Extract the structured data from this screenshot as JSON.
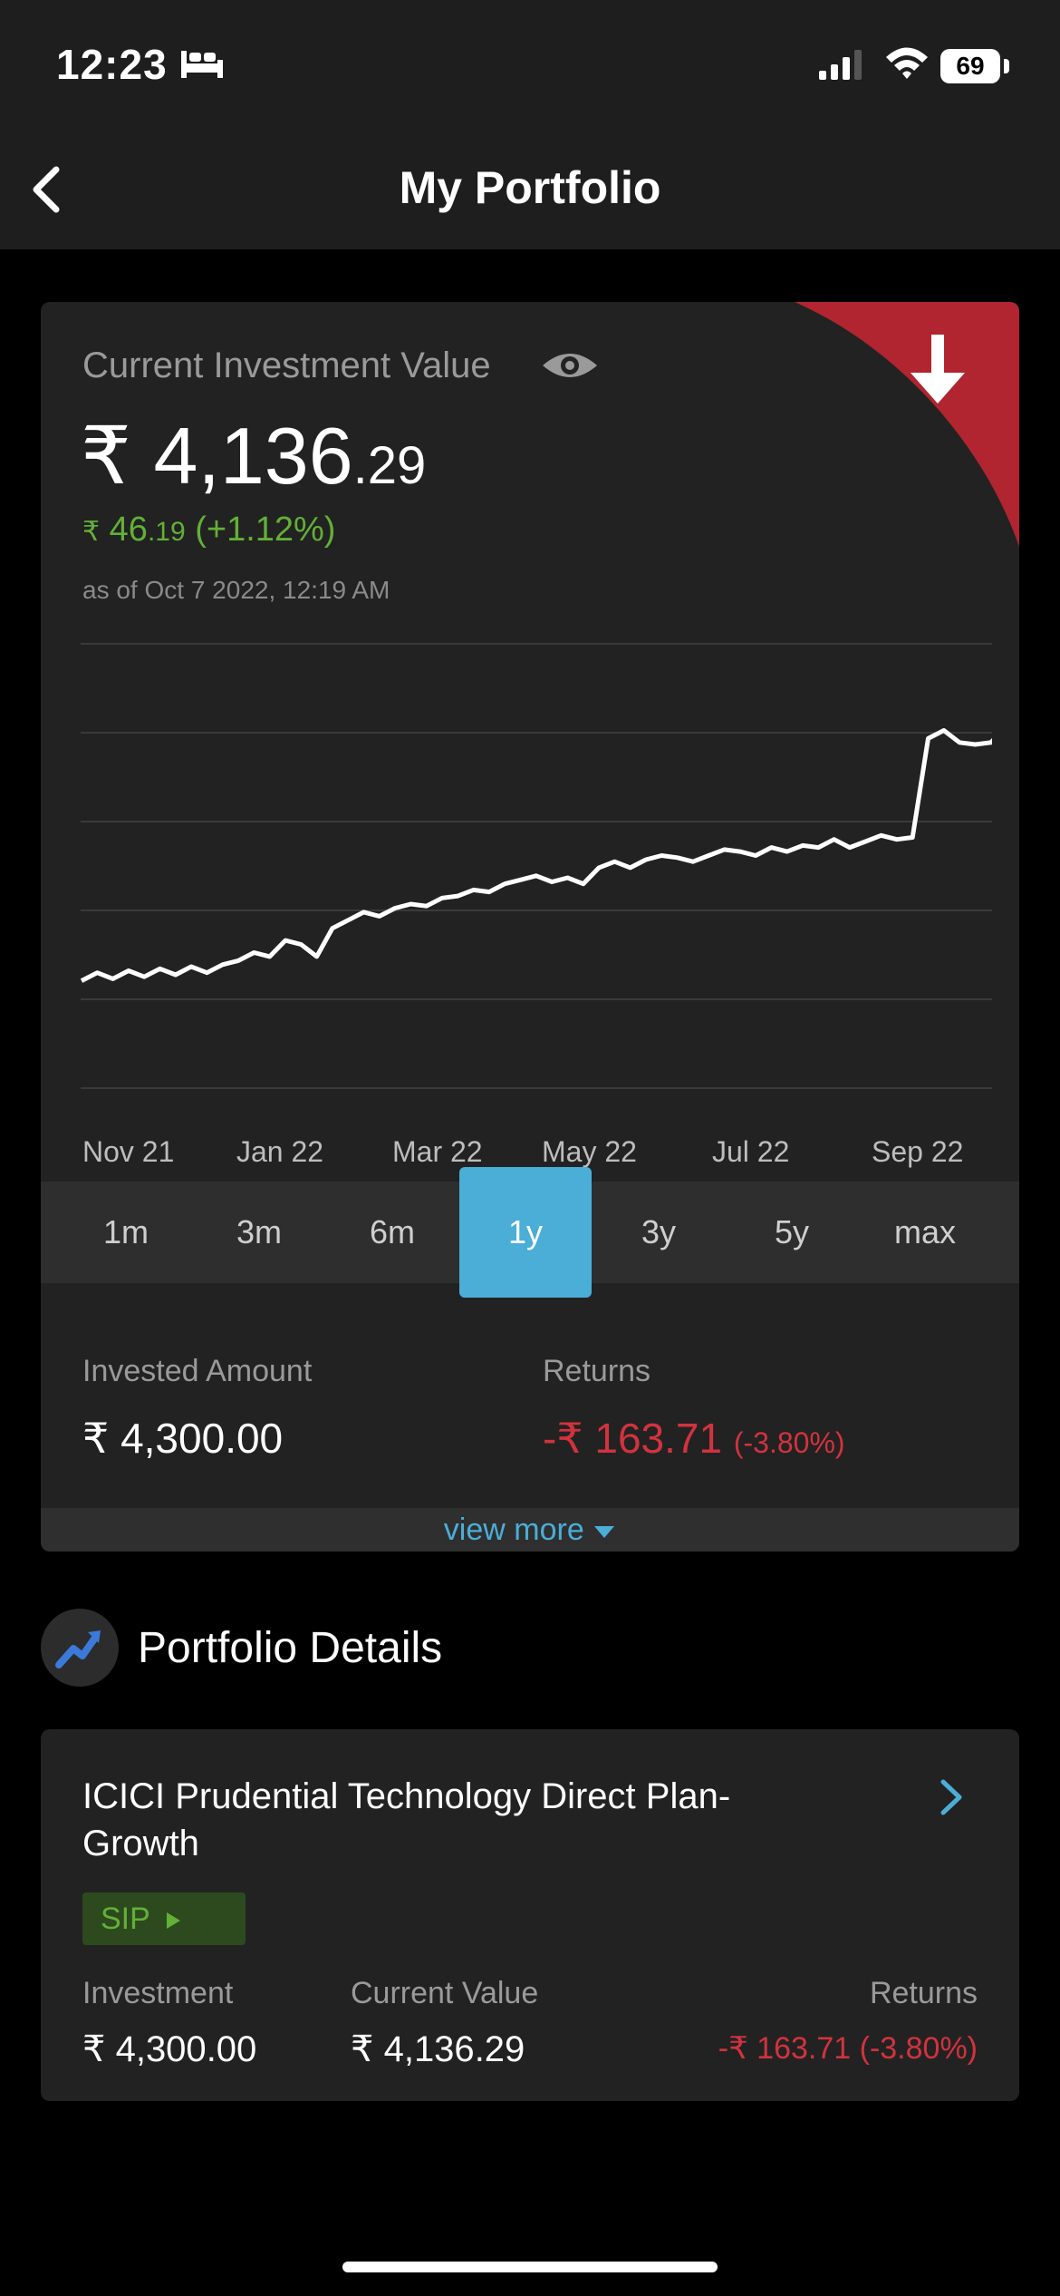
{
  "status_bar": {
    "time": "12:23",
    "battery": "69"
  },
  "header": {
    "title": "My Portfolio"
  },
  "summary": {
    "label": "Current Investment Value",
    "currency": "₹",
    "value_int": "4,136",
    "value_dec": ".29",
    "gain_int": "46",
    "gain_dec": ".19",
    "gain_pct": "(+1.12%)",
    "as_of": "as of Oct 7 2022, 12:19 AM",
    "trend_color": "#b0252f",
    "gain_color": "#62b037"
  },
  "chart_data": {
    "type": "line",
    "x_labels": [
      "Nov 21",
      "Jan 22",
      "Mar 22",
      "May 22",
      "Jul 22",
      "Sep 22"
    ],
    "series": [
      {
        "values": [
          3550,
          3570,
          3555,
          3575,
          3560,
          3580,
          3565,
          3585,
          3570,
          3590,
          3600,
          3620,
          3610,
          3650,
          3640,
          3610,
          3680,
          3700,
          3720,
          3710,
          3730,
          3740,
          3735,
          3755,
          3760,
          3775,
          3770,
          3790,
          3800,
          3810,
          3795,
          3805,
          3790,
          3830,
          3845,
          3830,
          3850,
          3860,
          3855,
          3845,
          3860,
          3875,
          3870,
          3860,
          3880,
          3870,
          3885,
          3880,
          3900,
          3880,
          3895,
          3910,
          3900,
          3905,
          4150,
          4170,
          4140,
          4135,
          4140,
          4180
        ]
      }
    ],
    "grid": true,
    "legend": "none"
  },
  "periods": {
    "items": [
      "1m",
      "3m",
      "6m",
      "1y",
      "3y",
      "5y",
      "max"
    ],
    "active": "1y"
  },
  "invested": {
    "label": "Invested Amount",
    "currency": "₹",
    "int": "4,300",
    "dec": ".00"
  },
  "returns": {
    "label": "Returns",
    "value": "-₹ 163.71",
    "pct": "(-3.80%)",
    "color": "#d1333e"
  },
  "view_more": {
    "label": "view more"
  },
  "portfolio_details": {
    "title": "Portfolio Details"
  },
  "fund": {
    "name": "ICICI Prudential Technology Direct Plan-Growth",
    "tag": "SIP",
    "investment_label": "Investment",
    "investment_int": "4,300",
    "investment_dec": ".00",
    "current_label": "Current Value",
    "current_int": "4,136",
    "current_dec": ".29",
    "returns_label": "Returns",
    "returns_int": "-₹ 163",
    "returns_dec": ".71",
    "returns_pct": "(-3.80%)"
  }
}
